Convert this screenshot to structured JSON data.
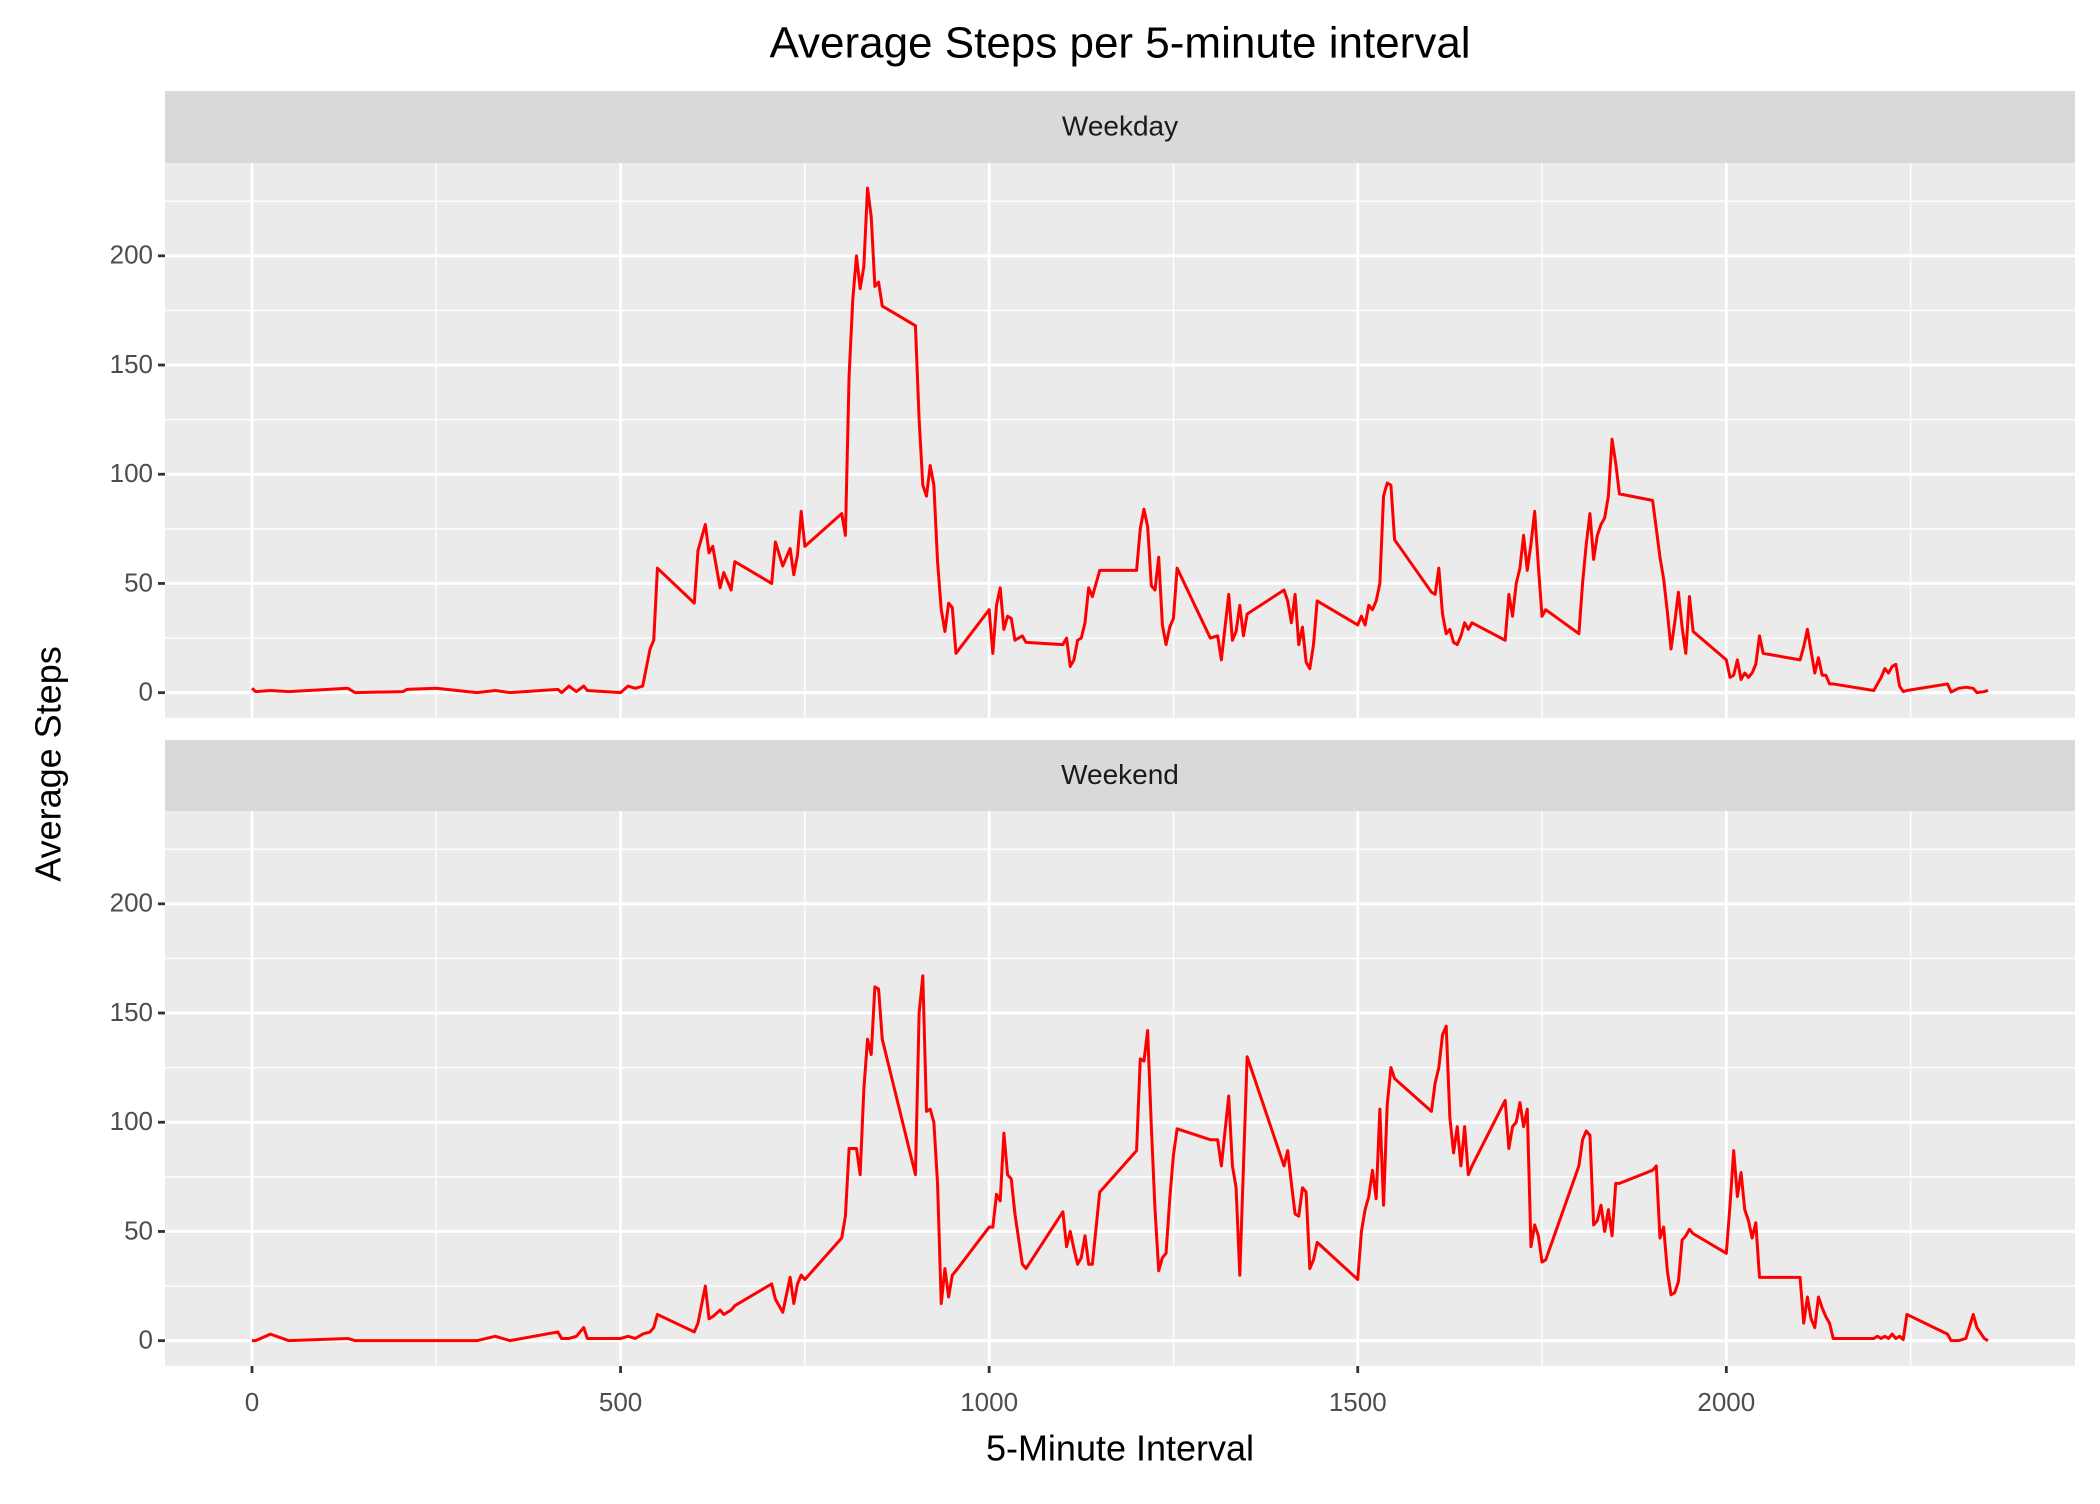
{
  "chart_data": {
    "type": "line",
    "title": "Average Steps per 5-minute interval",
    "x_label": "5-Minute Interval",
    "y_label": "Average Steps",
    "xlim": [
      -118,
      2473
    ],
    "xticks": [
      0,
      500,
      1000,
      1500,
      2000
    ],
    "xminor": [
      250,
      750,
      1250,
      1750,
      2250
    ],
    "ylim": [
      -11.6,
      242.5
    ],
    "yticks": [
      0,
      50,
      100,
      150,
      200
    ],
    "yminor": [
      25,
      75,
      125,
      175,
      225
    ],
    "grid": true,
    "x": [
      0,
      5,
      25,
      50,
      130,
      140,
      205,
      210,
      250,
      305,
      330,
      350,
      415,
      420,
      430,
      440,
      450,
      455,
      500,
      510,
      520,
      530,
      540,
      545,
      550,
      600,
      605,
      615,
      620,
      625,
      635,
      640,
      650,
      655,
      705,
      710,
      720,
      730,
      735,
      740,
      745,
      750,
      800,
      805,
      810,
      815,
      820,
      825,
      830,
      835,
      840,
      845,
      850,
      855,
      900,
      905,
      910,
      915,
      920,
      925,
      930,
      935,
      940,
      945,
      950,
      955,
      1000,
      1005,
      1010,
      1015,
      1020,
      1025,
      1030,
      1035,
      1045,
      1050,
      1100,
      1105,
      1110,
      1115,
      1120,
      1125,
      1130,
      1135,
      1140,
      1150,
      1200,
      1205,
      1210,
      1215,
      1220,
      1225,
      1230,
      1235,
      1240,
      1245,
      1250,
      1255,
      1300,
      1310,
      1315,
      1325,
      1330,
      1335,
      1340,
      1345,
      1350,
      1400,
      1405,
      1410,
      1415,
      1420,
      1425,
      1430,
      1435,
      1440,
      1445,
      1500,
      1505,
      1510,
      1515,
      1520,
      1525,
      1530,
      1535,
      1540,
      1545,
      1550,
      1600,
      1605,
      1610,
      1615,
      1620,
      1625,
      1630,
      1635,
      1640,
      1645,
      1650,
      1655,
      1700,
      1705,
      1710,
      1715,
      1720,
      1725,
      1730,
      1735,
      1740,
      1745,
      1750,
      1755,
      1800,
      1805,
      1810,
      1815,
      1820,
      1825,
      1830,
      1835,
      1840,
      1845,
      1850,
      1855,
      1900,
      1905,
      1910,
      1915,
      1920,
      1925,
      1930,
      1935,
      1940,
      1945,
      1950,
      1955,
      2000,
      2005,
      2010,
      2015,
      2020,
      2025,
      2030,
      2035,
      2040,
      2045,
      2050,
      2100,
      2105,
      2110,
      2115,
      2120,
      2125,
      2130,
      2135,
      2140,
      2145,
      2200,
      2205,
      2210,
      2215,
      2220,
      2225,
      2230,
      2235,
      2240,
      2245,
      2300,
      2305,
      2315,
      2325,
      2335,
      2340,
      2350,
      2355
    ],
    "series": [
      {
        "name": "Weekday",
        "color": "#ff0000",
        "values": [
          2,
          0.5,
          1,
          0.5,
          2,
          0,
          0.5,
          1.5,
          2,
          0,
          1,
          0,
          1.5,
          0,
          3,
          0.5,
          3,
          1,
          0,
          3,
          2,
          3,
          20,
          24,
          57,
          41,
          65,
          77,
          64,
          67,
          48,
          55,
          47,
          60,
          50,
          69,
          58,
          66,
          54,
          63,
          83,
          67,
          82,
          72,
          145,
          180,
          200,
          185,
          195,
          231,
          218,
          186,
          188,
          177,
          168,
          125,
          95,
          90,
          104,
          95,
          60,
          38,
          28,
          41,
          39,
          18,
          38,
          18,
          40,
          48,
          29,
          35,
          34,
          24,
          26,
          23,
          22,
          25,
          12,
          15,
          24,
          25,
          32,
          48,
          44,
          56,
          56,
          75,
          84,
          76,
          49,
          47,
          62,
          31,
          22,
          30,
          34,
          57,
          25,
          26,
          15,
          45,
          24,
          28,
          40,
          26,
          36,
          47,
          42,
          32,
          45,
          22,
          30,
          14,
          11,
          22,
          42,
          31,
          35,
          31,
          40,
          38,
          42,
          50,
          90,
          96,
          95,
          70,
          46,
          45,
          57,
          36,
          27,
          29,
          23,
          22,
          26,
          32,
          29,
          32,
          24,
          45,
          35,
          50,
          57,
          72,
          56,
          68,
          83,
          58,
          35,
          38,
          27,
          50,
          68,
          82,
          61,
          72,
          77,
          80,
          90,
          116,
          105,
          91,
          88,
          75,
          62,
          52,
          37,
          20,
          32,
          46,
          30,
          18,
          44,
          28,
          15,
          7,
          8,
          15,
          6,
          9,
          7,
          9,
          13,
          26,
          18,
          15,
          21,
          29,
          19,
          9,
          16,
          8,
          8,
          4,
          4,
          1,
          4,
          7,
          11,
          9,
          12,
          13,
          3,
          0.5,
          1,
          4,
          0.3,
          2,
          2.5,
          2,
          0,
          0.5,
          1
        ]
      },
      {
        "name": "Weekend",
        "color": "#ff0000",
        "values": [
          0,
          0,
          3,
          0,
          1,
          0,
          0,
          0,
          0,
          0,
          2,
          0,
          4,
          1,
          1,
          2,
          6,
          1,
          1,
          2,
          1,
          3,
          4,
          6,
          12,
          4,
          8,
          25,
          10,
          11,
          14,
          12,
          14,
          16,
          26,
          19,
          13,
          29,
          17,
          26,
          30,
          28,
          47,
          57,
          88,
          88,
          88,
          76,
          115,
          138,
          131,
          162,
          161,
          138,
          76,
          150,
          167,
          105,
          106,
          100,
          72,
          17,
          33,
          20,
          30,
          32,
          52,
          52,
          67,
          64,
          95,
          76,
          74,
          58,
          35,
          33,
          59,
          43,
          50,
          42,
          35,
          38,
          48,
          35,
          35,
          68,
          87,
          129,
          128,
          142,
          98,
          60,
          32,
          38,
          40,
          65,
          85,
          97,
          92,
          92,
          80,
          112,
          80,
          70,
          30,
          80,
          130,
          80,
          87,
          72,
          58,
          57,
          70,
          68,
          33,
          37,
          45,
          28,
          50,
          60,
          66,
          78,
          65,
          106,
          62,
          108,
          125,
          120,
          105,
          118,
          125,
          140,
          144,
          102,
          86,
          98,
          80,
          98,
          76,
          80,
          110,
          88,
          98,
          100,
          109,
          98,
          106,
          43,
          53,
          48,
          36,
          37,
          80,
          92,
          96,
          94,
          53,
          55,
          62,
          50,
          60,
          48,
          72,
          72,
          78,
          80,
          47,
          52,
          32,
          21,
          22,
          27,
          46,
          48,
          51,
          49,
          40,
          62,
          87,
          66,
          77,
          60,
          55,
          47,
          54,
          29,
          29,
          29,
          8,
          20,
          10,
          6,
          20,
          15,
          11,
          8,
          1,
          1,
          2,
          1,
          2,
          1,
          3,
          1,
          2,
          0.5,
          12,
          3,
          0,
          0,
          1,
          12,
          6,
          1,
          0
        ]
      }
    ]
  }
}
